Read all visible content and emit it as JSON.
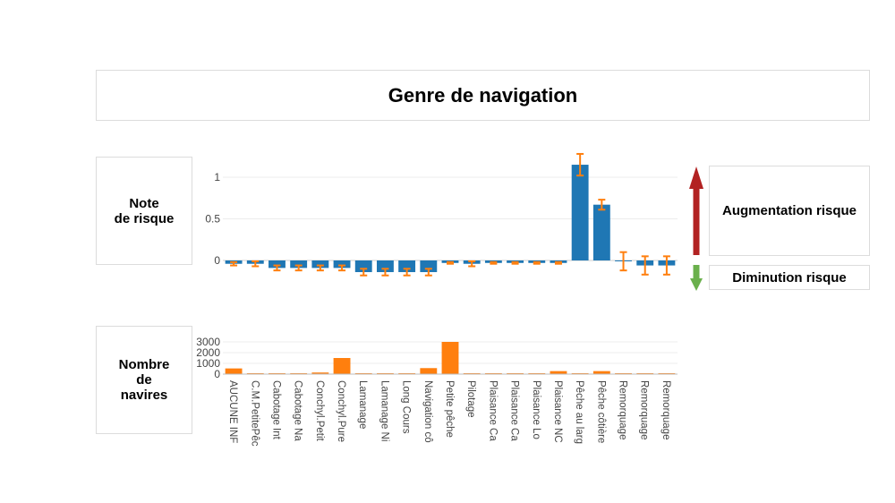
{
  "title": "Genre de navigation",
  "labels": {
    "note": [
      "Note",
      "de risque"
    ],
    "nombre": [
      "Nombre",
      "de",
      "navires"
    ],
    "augmentation": "Augmentation risque",
    "diminution": "Diminution risque"
  },
  "colors": {
    "risk_bar": "#1f77b4",
    "count_bar": "#ff7f0e",
    "error_bar": "#ff7f0e",
    "up_arrow": "#b22222",
    "down_arrow": "#6ab04c"
  },
  "chart_data": [
    {
      "type": "bar",
      "categories": [
        "AUCUNE INF",
        "C.M.PetitePêc",
        "Cabotage Int",
        "Cabotage Na",
        "Conchyl.Petit",
        "Conchyl.Pure",
        "Lamanage",
        "Lamanage Ni",
        "Long Cours",
        "Navigation cô",
        "Petite pêche",
        "Pilotage",
        "Plaisance Ca",
        "Plaisance Ca",
        "Plaisance Lo",
        "Plaisance NC",
        "Pêche au larg",
        "Pêche côtière",
        "Remorquage",
        "Remorquage",
        "Remorquage"
      ],
      "values": [
        -0.04,
        -0.04,
        -0.09,
        -0.09,
        -0.09,
        -0.09,
        -0.14,
        -0.14,
        -0.14,
        -0.14,
        -0.03,
        -0.04,
        -0.03,
        -0.03,
        -0.03,
        -0.03,
        1.15,
        0.67,
        -0.01,
        -0.06,
        -0.06
      ],
      "error": [
        0.02,
        0.03,
        0.03,
        0.03,
        0.03,
        0.03,
        0.04,
        0.04,
        0.04,
        0.04,
        0.01,
        0.03,
        0.01,
        0.01,
        0.01,
        0.01,
        0.13,
        0.06,
        0.11,
        0.11,
        0.11
      ],
      "yticks": [
        0,
        0.5,
        1
      ],
      "ylim": [
        -0.2,
        1.3
      ]
    },
    {
      "type": "bar",
      "categories": [
        "AUCUNE INF",
        "C.M.PetitePêc",
        "Cabotage Int",
        "Cabotage Na",
        "Conchyl.Petit",
        "Conchyl.Pure",
        "Lamanage",
        "Lamanage Ni",
        "Long Cours",
        "Navigation cô",
        "Petite pêche",
        "Pilotage",
        "Plaisance Ca",
        "Plaisance Ca",
        "Plaisance Lo",
        "Plaisance NC",
        "Pêche au larg",
        "Pêche côtière",
        "Remorquage",
        "Remorquage",
        "Remorquage"
      ],
      "values": [
        530,
        10,
        30,
        20,
        150,
        1500,
        20,
        40,
        20,
        560,
        3000,
        40,
        10,
        10,
        20,
        280,
        60,
        280,
        20,
        20,
        20
      ],
      "yticks": [
        0,
        1000,
        2000,
        3000
      ],
      "ylim": [
        0,
        3200
      ]
    }
  ]
}
